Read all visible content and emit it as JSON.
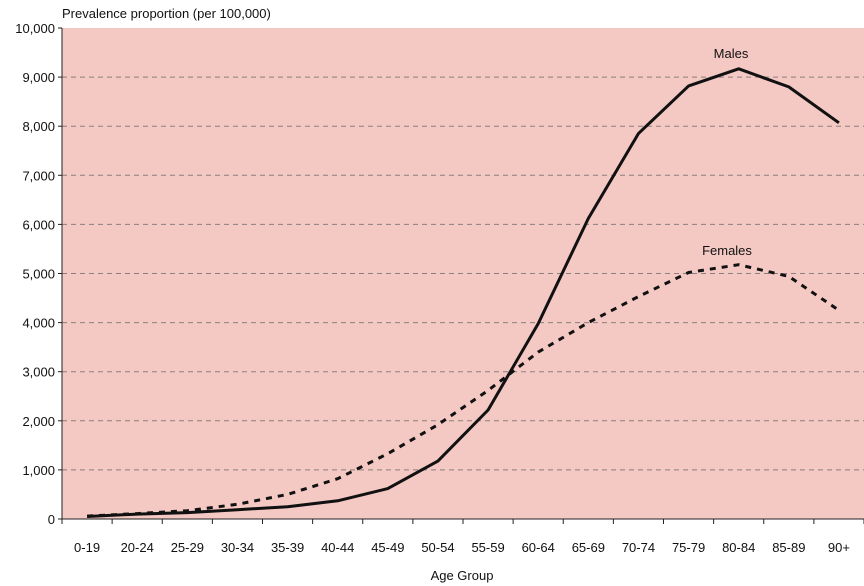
{
  "chart_data": {
    "type": "line",
    "ylabel": "Prevalence proportion (per 100,000)",
    "xlabel": "Age Group",
    "categories": [
      "0-19",
      "20-24",
      "25-29",
      "30-34",
      "35-39",
      "40-44",
      "45-49",
      "50-54",
      "55-59",
      "60-64",
      "65-69",
      "70-74",
      "75-79",
      "80-84",
      "85-89",
      "90+"
    ],
    "ylim": [
      0,
      10000
    ],
    "yticks": [
      0,
      1000,
      2000,
      3000,
      4000,
      5000,
      6000,
      7000,
      8000,
      9000,
      10000
    ],
    "ytick_labels": [
      "0",
      "1,000",
      "2,000",
      "3,000",
      "4,000",
      "5,000",
      "6,000",
      "7,000",
      "8,000",
      "9,000",
      "10,000"
    ],
    "grid": true,
    "plot_background": "#f4c8c3",
    "series": [
      {
        "name": "Males",
        "style": "solid",
        "color": "#111111",
        "values": [
          50,
          100,
          130,
          190,
          250,
          370,
          620,
          1180,
          2220,
          3980,
          6120,
          7850,
          8820,
          9170,
          8800,
          8070
        ]
      },
      {
        "name": "Females",
        "style": "dashed",
        "color": "#111111",
        "values": [
          60,
          110,
          170,
          300,
          500,
          820,
          1330,
          1920,
          2620,
          3400,
          4000,
          4530,
          5020,
          5180,
          4940,
          4250
        ]
      }
    ]
  }
}
